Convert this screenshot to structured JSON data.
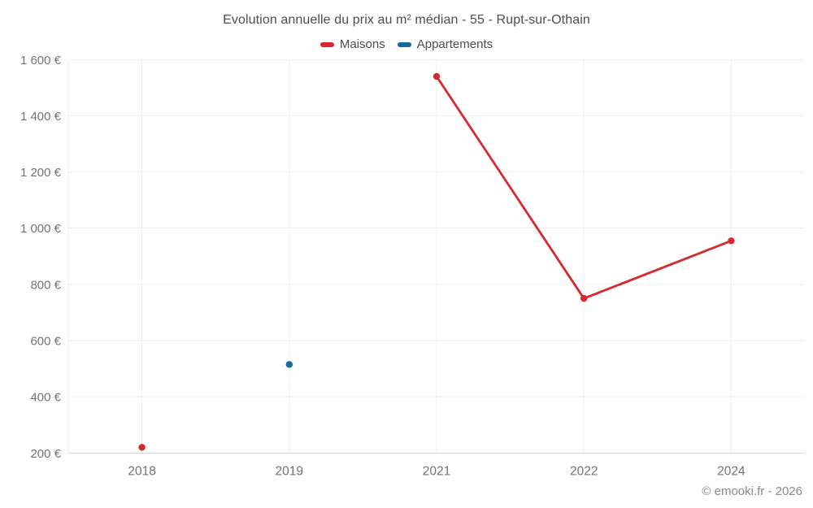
{
  "footer": {
    "text": "© emooki.fr - 2026"
  },
  "chart_data": {
    "type": "line",
    "title": "Evolution annuelle du prix au m² médian - 55 - Rupt-sur-Othain",
    "categories": [
      "2018",
      "2019",
      "2021",
      "2022",
      "2024"
    ],
    "series": [
      {
        "name": "Maisons",
        "color": "#d7282d",
        "values": [
          220,
          null,
          1540,
          750,
          955
        ]
      },
      {
        "name": "Appartements",
        "color": "#1568a0",
        "values": [
          null,
          515,
          null,
          null,
          null
        ]
      }
    ],
    "xlabel": "",
    "ylabel": "",
    "ylim": [
      200,
      1600
    ],
    "yticks": [
      200,
      400,
      600,
      800,
      1000,
      1200,
      1400,
      1600
    ],
    "ytick_labels": [
      "200 €",
      "400 €",
      "600 €",
      "800 €",
      "1 000 €",
      "1 200 €",
      "1 400 €",
      "1 600 €"
    ],
    "currency": "€",
    "grid": true,
    "legend_position": "top",
    "marker": "circle",
    "colors": {
      "grid_line": "#efefef",
      "axis_line": "#d9d9d9",
      "tick_label": "#737373",
      "title_text": "#4d4d4d",
      "footer_text": "#8a8a8a"
    }
  }
}
